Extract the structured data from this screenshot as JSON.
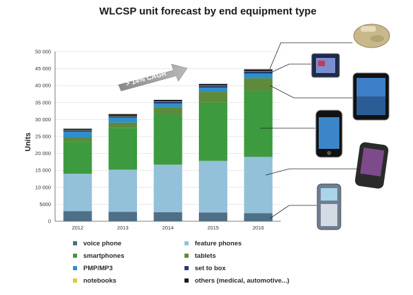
{
  "chart_data": {
    "type": "bar",
    "stacked": true,
    "title": "WLCSP unit forecast by end equipment type",
    "xlabel": "",
    "ylabel": "Units",
    "ylim": [
      0,
      50000
    ],
    "y_ticks": [
      "0",
      "5000",
      "10 000",
      "15 000",
      "20 000",
      "25 000",
      "30 000",
      "35 000",
      "40 000",
      "45 000",
      "50 000"
    ],
    "grid": true,
    "legend_position": "bottom",
    "categories": [
      "2012",
      "2013",
      "2014",
      "2015",
      "2016"
    ],
    "series": [
      {
        "name": "voice phone",
        "color": "#4f6f86",
        "values": [
          3000,
          2800,
          2700,
          2600,
          2400
        ]
      },
      {
        "name": "feature phones",
        "color": "#93c1d9",
        "values": [
          11000,
          12400,
          14000,
          15200,
          16600
        ]
      },
      {
        "name": "smartphones",
        "color": "#3d9a3f",
        "values": [
          9500,
          12400,
          14800,
          17200,
          19500
        ]
      },
      {
        "name": "tablets",
        "color": "#5e8a3c",
        "values": [
          1300,
          1500,
          2200,
          3200,
          3700
        ]
      },
      {
        "name": "PMP/MP3",
        "color": "#2d8fd0",
        "values": [
          1600,
          1500,
          1000,
          1200,
          1400
        ]
      },
      {
        "name": "set to box",
        "color": "#233a6e",
        "values": [
          400,
          400,
          500,
          500,
          600
        ]
      },
      {
        "name": "notebooks",
        "color": "#e5c43a",
        "values": [
          100,
          100,
          100,
          100,
          100
        ]
      },
      {
        "name": "others (medical, automotive...)",
        "color": "#1a1a1a",
        "values": [
          400,
          500,
          500,
          500,
          500
        ]
      }
    ],
    "annotations": [
      {
        "text": "> 14% CAGR",
        "type": "arrow"
      }
    ]
  },
  "legend": {
    "left": [
      "voice phone",
      "smartphones",
      "PMP/MP3",
      "notebooks"
    ],
    "right": [
      "feature phones",
      "tablets",
      "set to box",
      "others (medical, automotive...)"
    ]
  },
  "device_images": [
    {
      "name": "medical-implant-icon",
      "color": "#c9b98a"
    },
    {
      "name": "set-top-box-icon",
      "color": "#1e2a4a"
    },
    {
      "name": "tablet-icon",
      "color": "#111111"
    },
    {
      "name": "smartphone-icon",
      "color": "#111111"
    },
    {
      "name": "feature-phone-icon",
      "color": "#2a2a2a"
    },
    {
      "name": "voice-phone-icon",
      "color": "#6f7f92"
    }
  ]
}
